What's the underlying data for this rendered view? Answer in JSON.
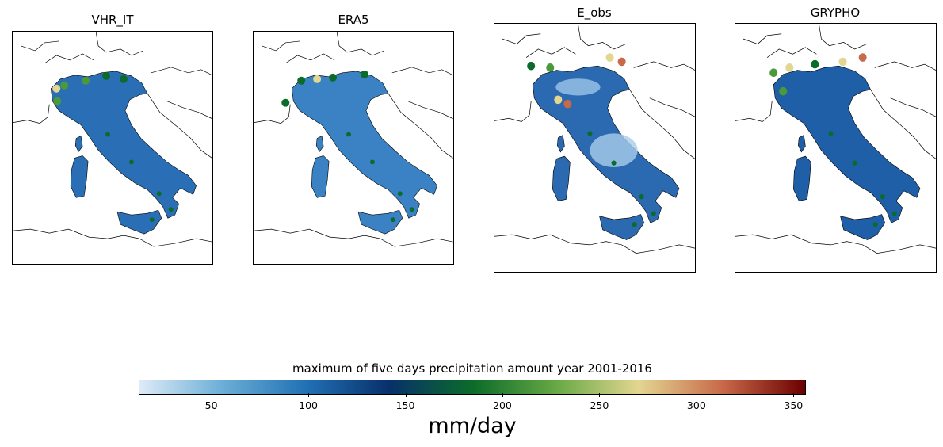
{
  "panels": [
    {
      "title": "VHR_IT"
    },
    {
      "title": "ERA5"
    },
    {
      "title": "E_obs"
    },
    {
      "title": "GRYPHO"
    }
  ],
  "colorbar": {
    "title": "maximum of five days precipitation amount year 2001-2016",
    "unit": "mm/day",
    "range": [
      13,
      356
    ],
    "ticks": [
      "50",
      "100",
      "150",
      "200",
      "250",
      "300",
      "350"
    ],
    "colors": [
      "#deebf7",
      "#6baed6",
      "#2171b5",
      "#08306b",
      "#0b6b2a",
      "#66a844",
      "#e3d691",
      "#c86a4a",
      "#6b0000"
    ]
  }
}
